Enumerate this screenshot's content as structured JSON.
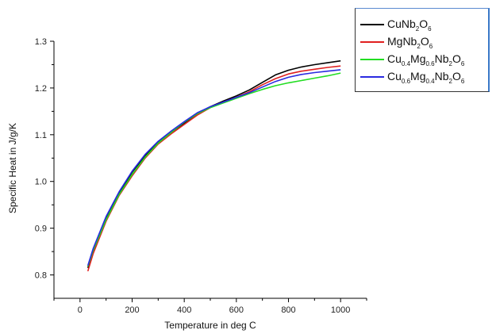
{
  "chart_data": {
    "type": "line",
    "title": "",
    "xlabel": "Temperature in deg C",
    "ylabel": "Specific Heat in J/g/K",
    "xlim": [
      -100,
      1100
    ],
    "ylim": [
      0.75,
      1.3
    ],
    "xticks": [
      0,
      200,
      400,
      600,
      800,
      1000
    ],
    "yticks": [
      0.8,
      0.9,
      1.0,
      1.1,
      1.2,
      1.3
    ],
    "xtick_labels": [
      "0",
      "200",
      "400",
      "600",
      "800",
      "1000"
    ],
    "ytick_labels": [
      "0.8",
      "0.9",
      "1.0",
      "1.1",
      "1.2",
      "1.3"
    ],
    "legend_position": "top-right",
    "series": [
      {
        "name": "CuNb2O6",
        "label_html": "CuNb<sub>2</sub>O<sub>6</sub>",
        "color": "#000000",
        "x": [
          30,
          50,
          100,
          150,
          200,
          250,
          300,
          350,
          400,
          450,
          500,
          550,
          600,
          650,
          700,
          750,
          800,
          850,
          900,
          950,
          1000
        ],
        "y": [
          0.815,
          0.85,
          0.92,
          0.975,
          1.02,
          1.055,
          1.085,
          1.105,
          1.125,
          1.145,
          1.16,
          1.172,
          1.183,
          1.196,
          1.212,
          1.228,
          1.238,
          1.245,
          1.25,
          1.254,
          1.258
        ]
      },
      {
        "name": "MgNb2O6",
        "label_html": "MgNb<sub>2</sub>O<sub>6</sub>",
        "color": "#e02020",
        "x": [
          30,
          50,
          100,
          150,
          200,
          250,
          300,
          350,
          400,
          450,
          500,
          550,
          600,
          650,
          700,
          750,
          800,
          850,
          900,
          950,
          1000
        ],
        "y": [
          0.808,
          0.845,
          0.915,
          0.97,
          1.012,
          1.05,
          1.08,
          1.102,
          1.122,
          1.142,
          1.158,
          1.17,
          1.18,
          1.192,
          1.207,
          1.22,
          1.23,
          1.236,
          1.24,
          1.244,
          1.247
        ]
      },
      {
        "name": "Cu0.4Mg0.6Nb2O6",
        "label_html": "Cu<sub>0.4</sub>Mg<sub>0.6</sub>Nb<sub>2</sub>O<sub>6</sub>",
        "color": "#22dd22",
        "x": [
          30,
          50,
          100,
          150,
          200,
          250,
          300,
          350,
          400,
          450,
          500,
          550,
          600,
          650,
          700,
          750,
          800,
          850,
          900,
          950,
          1000
        ],
        "y": [
          0.818,
          0.852,
          0.918,
          0.972,
          1.015,
          1.052,
          1.082,
          1.105,
          1.127,
          1.145,
          1.158,
          1.168,
          1.178,
          1.188,
          1.197,
          1.205,
          1.211,
          1.216,
          1.221,
          1.226,
          1.232
        ]
      },
      {
        "name": "Cu0.6Mg0.4Nb2O6",
        "label_html": "Cu<sub>0.6</sub>Mg<sub>0.4</sub>Nb<sub>2</sub>O<sub>6</sub>",
        "color": "#2a2ae0",
        "x": [
          30,
          50,
          100,
          150,
          200,
          250,
          300,
          350,
          400,
          450,
          500,
          550,
          600,
          650,
          700,
          750,
          800,
          850,
          900,
          950,
          1000
        ],
        "y": [
          0.82,
          0.856,
          0.925,
          0.978,
          1.022,
          1.058,
          1.086,
          1.108,
          1.128,
          1.147,
          1.16,
          1.17,
          1.18,
          1.19,
          1.202,
          1.214,
          1.223,
          1.229,
          1.233,
          1.236,
          1.239
        ]
      }
    ]
  }
}
